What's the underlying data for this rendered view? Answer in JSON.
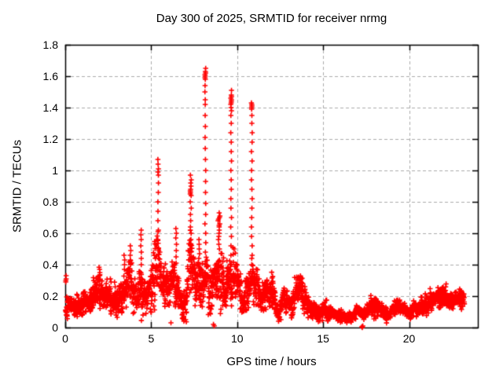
{
  "page": {
    "background": "#ffffff"
  },
  "chart_data": {
    "type": "scatter",
    "title": "Day 300 of 2025, SRMTID for receiver nrmg",
    "xlabel": "GPS time / hours",
    "ylabel": "SRMTID / TECUs",
    "xlim": [
      0,
      24
    ],
    "ylim": [
      0,
      1.8
    ],
    "xticks": [
      0,
      5,
      10,
      15,
      20
    ],
    "yticks": [
      0,
      0.2,
      0.4,
      0.6,
      0.8,
      1,
      1.2,
      1.4,
      1.6,
      1.8
    ],
    "ytick_labels": [
      "0",
      "0.2",
      "0.4",
      "0.6",
      "0.8",
      "1",
      "1.2",
      "1.4",
      "1.6",
      "1.8"
    ],
    "grid": true,
    "legend": "none",
    "axis_color": "#000000",
    "grid_color": "#ababab",
    "marker": {
      "shape": "plus",
      "size": 6.5,
      "color": "#ff0000"
    },
    "series_name": "SRMTID",
    "t_start": 0.02,
    "t_end": 23.22,
    "sample_step_hours": 0.0095,
    "seed": 300,
    "baseline_band": [
      [
        0.0,
        0.16,
        0.08
      ],
      [
        0.4,
        0.13,
        0.06
      ],
      [
        0.8,
        0.14,
        0.07
      ],
      [
        1.2,
        0.16,
        0.07
      ],
      [
        1.6,
        0.18,
        0.08
      ],
      [
        1.9,
        0.23,
        0.11
      ],
      [
        2.2,
        0.17,
        0.08
      ],
      [
        2.6,
        0.21,
        0.09
      ],
      [
        2.95,
        0.16,
        0.08
      ],
      [
        3.3,
        0.21,
        0.11
      ],
      [
        3.6,
        0.25,
        0.13
      ],
      [
        3.85,
        0.28,
        0.14
      ],
      [
        4.1,
        0.2,
        0.11
      ],
      [
        4.4,
        0.28,
        0.16
      ],
      [
        4.7,
        0.21,
        0.11
      ],
      [
        5.1,
        0.27,
        0.15
      ],
      [
        5.4,
        0.36,
        0.21
      ],
      [
        5.7,
        0.29,
        0.15
      ],
      [
        6.0,
        0.24,
        0.13
      ],
      [
        6.4,
        0.29,
        0.17
      ],
      [
        6.7,
        0.2,
        0.13
      ],
      [
        7.0,
        0.13,
        0.09
      ],
      [
        7.3,
        0.38,
        0.24
      ],
      [
        7.6,
        0.28,
        0.15
      ],
      [
        7.9,
        0.25,
        0.15
      ],
      [
        8.2,
        0.28,
        0.16
      ],
      [
        8.55,
        0.26,
        0.14
      ],
      [
        8.95,
        0.42,
        0.24
      ],
      [
        9.3,
        0.24,
        0.12
      ],
      [
        9.65,
        0.33,
        0.19
      ],
      [
        10.0,
        0.25,
        0.13
      ],
      [
        10.3,
        0.17,
        0.08
      ],
      [
        10.6,
        0.24,
        0.13
      ],
      [
        10.85,
        0.29,
        0.15
      ],
      [
        11.15,
        0.27,
        0.12
      ],
      [
        11.4,
        0.18,
        0.1
      ],
      [
        11.7,
        0.26,
        0.11
      ],
      [
        12.05,
        0.19,
        0.1
      ],
      [
        12.4,
        0.1,
        0.06
      ],
      [
        12.75,
        0.2,
        0.1
      ],
      [
        13.1,
        0.12,
        0.07
      ],
      [
        13.45,
        0.24,
        0.1
      ],
      [
        13.75,
        0.23,
        0.1
      ],
      [
        14.05,
        0.15,
        0.07
      ],
      [
        14.4,
        0.11,
        0.05
      ],
      [
        14.8,
        0.1,
        0.05
      ],
      [
        15.2,
        0.1,
        0.05
      ],
      [
        15.6,
        0.09,
        0.05
      ],
      [
        16.0,
        0.08,
        0.04
      ],
      [
        16.35,
        0.055,
        0.035
      ],
      [
        16.7,
        0.06,
        0.035
      ],
      [
        17.0,
        0.1,
        0.05
      ],
      [
        17.35,
        0.08,
        0.045
      ],
      [
        17.75,
        0.13,
        0.06
      ],
      [
        18.1,
        0.15,
        0.06
      ],
      [
        18.45,
        0.12,
        0.05
      ],
      [
        18.8,
        0.09,
        0.045
      ],
      [
        19.2,
        0.12,
        0.05
      ],
      [
        19.55,
        0.14,
        0.05
      ],
      [
        19.95,
        0.1,
        0.045
      ],
      [
        20.35,
        0.12,
        0.05
      ],
      [
        20.75,
        0.14,
        0.055
      ],
      [
        21.15,
        0.17,
        0.06
      ],
      [
        21.55,
        0.2,
        0.075
      ],
      [
        21.9,
        0.21,
        0.08
      ],
      [
        22.25,
        0.17,
        0.06
      ],
      [
        22.6,
        0.19,
        0.065
      ],
      [
        22.95,
        0.2,
        0.06
      ],
      [
        23.22,
        0.18,
        0.05
      ]
    ],
    "spike_columns": [
      {
        "t": 0.05,
        "jitter": 0.04,
        "ys": [
          0.33,
          0.31,
          0.3,
          0.29
        ]
      },
      {
        "t": 2.0,
        "jitter": 0.06,
        "ys": [
          0.37,
          0.35,
          0.33
        ]
      },
      {
        "t": 2.65,
        "jitter": 0.06,
        "ys": [
          0.31,
          0.29
        ]
      },
      {
        "t": 3.45,
        "jitter": 0.06,
        "ys": [
          0.46,
          0.43,
          0.4,
          0.37
        ]
      },
      {
        "t": 3.8,
        "jitter": 0.06,
        "ys": [
          0.52,
          0.49,
          0.46,
          0.43,
          0.4
        ]
      },
      {
        "t": 4.4,
        "jitter": 0.06,
        "ys": [
          0.62,
          0.59,
          0.56,
          0.52,
          0.48,
          0.44,
          0.4
        ]
      },
      {
        "t": 5.4,
        "jitter": 0.05,
        "ys": [
          1.07,
          1.04,
          1.01,
          0.99,
          0.97,
          0.92,
          0.86,
          0.8,
          0.74,
          0.68,
          0.62,
          0.56,
          0.5,
          0.44
        ]
      },
      {
        "t": 6.45,
        "jitter": 0.06,
        "ys": [
          0.63,
          0.6,
          0.57,
          0.53,
          0.49,
          0.45,
          0.41
        ]
      },
      {
        "t": 7.3,
        "jitter": 0.07,
        "ys": [
          0.97,
          0.94,
          0.92,
          0.9,
          0.88,
          0.87,
          0.86,
          0.85,
          0.84,
          0.8,
          0.76,
          0.72,
          0.68,
          0.64,
          0.6,
          0.56,
          0.52,
          0.48,
          0.44
        ]
      },
      {
        "t": 7.8,
        "jitter": 0.06,
        "ys": [
          0.56,
          0.53,
          0.5,
          0.47,
          0.44
        ]
      },
      {
        "t": 8.15,
        "jitter": 0.05,
        "ys": [
          1.65,
          1.63,
          1.62,
          1.61,
          1.6,
          1.59,
          1.58,
          1.54,
          1.5,
          1.45,
          1.42,
          1.35,
          1.28,
          1.21,
          1.14,
          1.07,
          1.0,
          0.93,
          0.86,
          0.79,
          0.72,
          0.66,
          0.6,
          0.54,
          0.48,
          0.42
        ]
      },
      {
        "t": 8.95,
        "jitter": 0.12,
        "ys": [
          0.73,
          0.71,
          0.7,
          0.69,
          0.68,
          0.66,
          0.65,
          0.64,
          0.62,
          0.6,
          0.58,
          0.56,
          0.53,
          0.5
        ]
      },
      {
        "t": 9.65,
        "jitter": 0.05,
        "ys": [
          1.51,
          1.48,
          1.47,
          1.46,
          1.45,
          1.44,
          1.43,
          1.42,
          1.4,
          1.38,
          1.35,
          1.3,
          1.24,
          1.18,
          1.12,
          1.06,
          1.0,
          0.94,
          0.88,
          0.82,
          0.76,
          0.7,
          0.64,
          0.58,
          0.52,
          0.46,
          0.4
        ]
      },
      {
        "t": 10.85,
        "jitter": 0.05,
        "ys": [
          1.43,
          1.42,
          1.41,
          1.4,
          1.39,
          1.35,
          1.3,
          1.24,
          1.18,
          1.12,
          1.06,
          1.0,
          0.94,
          0.88,
          0.82,
          0.76,
          0.7,
          0.64,
          0.58,
          0.52,
          0.46,
          0.44,
          0.4
        ]
      }
    ],
    "low_outliers": [
      [
        6.15,
        0.03
      ],
      [
        6.9,
        0.04
      ],
      [
        7.0,
        0.05
      ],
      [
        8.62,
        0.02
      ],
      [
        8.67,
        0.01
      ],
      [
        12.55,
        0.05
      ],
      [
        17.25,
        0.005
      ],
      [
        17.28,
        0.0
      ],
      [
        17.31,
        0.01
      ]
    ]
  }
}
